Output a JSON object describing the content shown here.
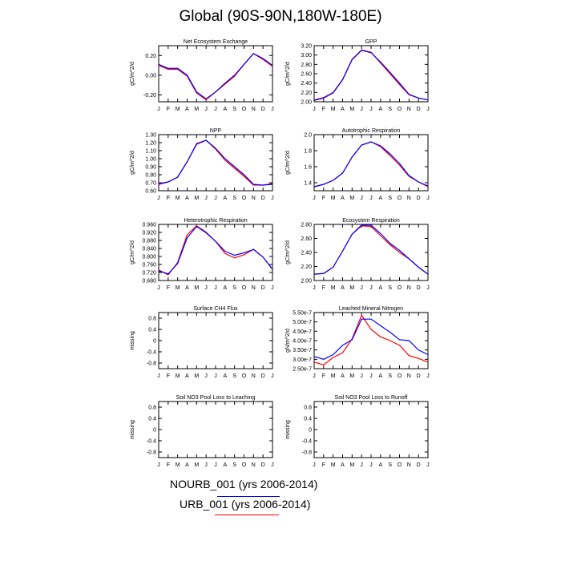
{
  "title": "Global (90S-90N,180W-180E)",
  "colors": {
    "series_1": "#0000ff",
    "series_2": "#ff0000"
  },
  "legend": [
    {
      "label": "NOURB_001 (yrs 2006-2014)",
      "color": "#0000ff"
    },
    {
      "label": "URB_001 (yrs 2006-2014)",
      "color": "#ff0000"
    }
  ],
  "chart_data": [
    {
      "type": "line",
      "title": "Net Ecosystem Exchange",
      "ylabel": "gC/m^2/d",
      "ylim": [
        -0.27,
        0.3
      ],
      "yticks": [
        {
          "v": -0.2,
          "label": "-0.20"
        },
        {
          "v": 0.0,
          "label": "0.00"
        },
        {
          "v": 0.2,
          "label": "0.20"
        }
      ],
      "categories": [
        "J",
        "F",
        "M",
        "A",
        "M",
        "J",
        "J",
        "A",
        "S",
        "O",
        "N",
        "D",
        "J"
      ],
      "series": [
        {
          "color": "#0000ff",
          "values": [
            0.11,
            0.07,
            0.07,
            0.0,
            -0.17,
            -0.24,
            -0.17,
            -0.08,
            0.0,
            0.11,
            0.22,
            0.17,
            0.1
          ]
        },
        {
          "color": "#ff0000",
          "values": [
            0.1,
            0.06,
            0.06,
            -0.01,
            -0.18,
            -0.25,
            -0.17,
            -0.09,
            -0.01,
            0.11,
            0.22,
            0.16,
            0.09
          ]
        }
      ]
    },
    {
      "type": "line",
      "title": "GPP",
      "ylabel": "gC/m^2/d",
      "ylim": [
        2.0,
        3.2
      ],
      "yticks": [
        {
          "v": 2.0,
          "label": "2.00"
        },
        {
          "v": 2.2,
          "label": "2.20"
        },
        {
          "v": 2.4,
          "label": "2.40"
        },
        {
          "v": 2.6,
          "label": "2.60"
        },
        {
          "v": 2.8,
          "label": "2.80"
        },
        {
          "v": 3.0,
          "label": "3.00"
        },
        {
          "v": 3.2,
          "label": "3.20"
        }
      ],
      "categories": [
        "J",
        "F",
        "M",
        "A",
        "M",
        "J",
        "J",
        "A",
        "S",
        "O",
        "N",
        "D",
        "J"
      ],
      "series": [
        {
          "color": "#0000ff",
          "values": [
            2.03,
            2.08,
            2.19,
            2.47,
            2.9,
            3.1,
            3.05,
            2.85,
            2.63,
            2.4,
            2.16,
            2.08,
            2.04
          ]
        },
        {
          "color": "#ff0000",
          "values": [
            2.04,
            2.09,
            2.2,
            2.48,
            2.91,
            3.11,
            3.06,
            2.83,
            2.6,
            2.37,
            2.15,
            2.08,
            2.04
          ]
        }
      ]
    },
    {
      "type": "line",
      "title": "NPP",
      "ylabel": "gC/m^2/d",
      "ylim": [
        0.6,
        1.3
      ],
      "yticks": [
        {
          "v": 0.6,
          "label": "0.60"
        },
        {
          "v": 0.7,
          "label": "0.70"
        },
        {
          "v": 0.8,
          "label": "0.80"
        },
        {
          "v": 0.9,
          "label": "0.90"
        },
        {
          "v": 1.0,
          "label": "1.00"
        },
        {
          "v": 1.1,
          "label": "1.10"
        },
        {
          "v": 1.2,
          "label": "1.20"
        },
        {
          "v": 1.3,
          "label": "1.30"
        }
      ],
      "categories": [
        "J",
        "F",
        "M",
        "A",
        "M",
        "J",
        "J",
        "A",
        "S",
        "O",
        "N",
        "D",
        "J"
      ],
      "series": [
        {
          "color": "#0000ff",
          "values": [
            0.68,
            0.71,
            0.77,
            0.96,
            1.18,
            1.23,
            1.13,
            1.0,
            0.9,
            0.8,
            0.68,
            0.67,
            0.68
          ]
        },
        {
          "color": "#ff0000",
          "values": [
            0.69,
            0.71,
            0.77,
            0.96,
            1.19,
            1.23,
            1.12,
            0.98,
            0.88,
            0.78,
            0.67,
            0.67,
            0.69
          ]
        }
      ]
    },
    {
      "type": "line",
      "title": "Autotrophic Respiration",
      "ylabel": "gC/m^2/d",
      "ylim": [
        1.3,
        2.0
      ],
      "yticks": [
        {
          "v": 1.4,
          "label": "1.4"
        },
        {
          "v": 1.6,
          "label": "1.6"
        },
        {
          "v": 1.8,
          "label": "1.8"
        },
        {
          "v": 2.0,
          "label": "2.0"
        }
      ],
      "categories": [
        "J",
        "F",
        "M",
        "A",
        "M",
        "J",
        "J",
        "A",
        "S",
        "O",
        "N",
        "D",
        "J"
      ],
      "series": [
        {
          "color": "#0000ff",
          "values": [
            1.35,
            1.38,
            1.43,
            1.52,
            1.72,
            1.87,
            1.91,
            1.86,
            1.76,
            1.64,
            1.49,
            1.41,
            1.36
          ]
        },
        {
          "color": "#ff0000",
          "values": [
            1.35,
            1.38,
            1.43,
            1.52,
            1.72,
            1.87,
            1.91,
            1.85,
            1.74,
            1.62,
            1.48,
            1.41,
            1.35
          ]
        }
      ]
    },
    {
      "type": "line",
      "title": "Heterotrophic Respiration",
      "ylabel": "gC/m^2/d",
      "ylim": [
        0.68,
        0.96
      ],
      "yticks": [
        {
          "v": 0.68,
          "label": "0.680"
        },
        {
          "v": 0.72,
          "label": "0.720"
        },
        {
          "v": 0.76,
          "label": "0.760"
        },
        {
          "v": 0.8,
          "label": "0.800"
        },
        {
          "v": 0.84,
          "label": "0.840"
        },
        {
          "v": 0.88,
          "label": "0.880"
        },
        {
          "v": 0.92,
          "label": "0.920"
        },
        {
          "v": 0.96,
          "label": "0.960"
        }
      ],
      "categories": [
        "J",
        "F",
        "M",
        "A",
        "M",
        "J",
        "J",
        "A",
        "S",
        "O",
        "N",
        "D",
        "J"
      ],
      "series": [
        {
          "color": "#0000ff",
          "values": [
            0.728,
            0.713,
            0.765,
            0.893,
            0.95,
            0.918,
            0.876,
            0.826,
            0.806,
            0.818,
            0.835,
            0.797,
            0.736
          ]
        },
        {
          "color": "#ff0000",
          "values": [
            0.733,
            0.708,
            0.77,
            0.908,
            0.953,
            0.921,
            0.875,
            0.815,
            0.793,
            0.808,
            0.836,
            0.797,
            0.736
          ]
        }
      ]
    },
    {
      "type": "line",
      "title": "Ecosystem Respiration",
      "ylabel": "gC/m^2/d",
      "ylim": [
        2.0,
        2.8
      ],
      "yticks": [
        {
          "v": 2.0,
          "label": "2.00"
        },
        {
          "v": 2.2,
          "label": "2.20"
        },
        {
          "v": 2.4,
          "label": "2.40"
        },
        {
          "v": 2.6,
          "label": "2.60"
        },
        {
          "v": 2.8,
          "label": "2.80"
        }
      ],
      "categories": [
        "J",
        "F",
        "M",
        "A",
        "M",
        "J",
        "J",
        "A",
        "S",
        "O",
        "N",
        "D",
        "J"
      ],
      "series": [
        {
          "color": "#0000ff",
          "values": [
            2.09,
            2.1,
            2.19,
            2.42,
            2.66,
            2.79,
            2.79,
            2.67,
            2.53,
            2.43,
            2.31,
            2.19,
            2.09
          ]
        },
        {
          "color": "#ff0000",
          "values": [
            2.09,
            2.1,
            2.19,
            2.42,
            2.66,
            2.78,
            2.77,
            2.64,
            2.51,
            2.4,
            2.31,
            2.19,
            2.09
          ]
        }
      ]
    },
    {
      "type": "line",
      "title": "Surface CH4 Flux",
      "ylabel": "missing",
      "ylim": [
        -1.0,
        1.0
      ],
      "yticks": [
        {
          "v": -0.8,
          "label": "-0.8"
        },
        {
          "v": -0.4,
          "label": "-0.4"
        },
        {
          "v": 0.0,
          "label": "0"
        },
        {
          "v": 0.4,
          "label": "0.4"
        },
        {
          "v": 0.8,
          "label": "0.8"
        }
      ],
      "categories": [
        "J",
        "F",
        "M",
        "A",
        "M",
        "J",
        "J",
        "A",
        "S",
        "O",
        "N",
        "D",
        "J"
      ],
      "series": []
    },
    {
      "type": "line",
      "title": "Leached Mineral Nitrogen",
      "ylabel": "gN/m^2/d",
      "ylim": [
        2.5e-07,
        5.5e-07
      ],
      "yticks": [
        {
          "v": 2.5e-07,
          "label": "2.50e-7"
        },
        {
          "v": 3e-07,
          "label": "3.00e-7"
        },
        {
          "v": 3.5e-07,
          "label": "3.50e-7"
        },
        {
          "v": 4e-07,
          "label": "4.00e-7"
        },
        {
          "v": 4.5e-07,
          "label": "4.50e-7"
        },
        {
          "v": 5e-07,
          "label": "5.00e-7"
        },
        {
          "v": 5.5e-07,
          "label": "5.50e-7"
        }
      ],
      "categories": [
        "J",
        "F",
        "M",
        "A",
        "M",
        "J",
        "J",
        "A",
        "S",
        "O",
        "N",
        "D",
        "J"
      ],
      "series": [
        {
          "color": "#0000ff",
          "values": [
            3.15e-07,
            3e-07,
            3.25e-07,
            3.75e-07,
            4.05e-07,
            5.15e-07,
            5.15e-07,
            4.8e-07,
            4.45e-07,
            4.05e-07,
            4e-07,
            3.5e-07,
            3.25e-07
          ]
        },
        {
          "color": "#ff0000",
          "values": [
            2.85e-07,
            2.7e-07,
            3.1e-07,
            3.35e-07,
            4.1e-07,
            5.35e-07,
            4.6e-07,
            4.2e-07,
            4e-07,
            3.75e-07,
            3.2e-07,
            3.05e-07,
            2.85e-07
          ]
        }
      ]
    },
    {
      "type": "line",
      "title": "Soil NO3 Pool Loss to Leaching",
      "ylabel": "missing",
      "ylim": [
        -1.0,
        1.0
      ],
      "yticks": [
        {
          "v": -0.8,
          "label": "-0.8"
        },
        {
          "v": -0.4,
          "label": "-0.4"
        },
        {
          "v": 0.0,
          "label": "0"
        },
        {
          "v": 0.4,
          "label": "0.4"
        },
        {
          "v": 0.8,
          "label": "0.8"
        }
      ],
      "categories": [
        "J",
        "F",
        "M",
        "A",
        "M",
        "J",
        "J",
        "A",
        "S",
        "O",
        "N",
        "D",
        "J"
      ],
      "series": []
    },
    {
      "type": "line",
      "title": "Soil NO3 Pool Loss to Runoff",
      "ylabel": "missing",
      "ylim": [
        -1.0,
        1.0
      ],
      "yticks": [
        {
          "v": -0.8,
          "label": "-0.8"
        },
        {
          "v": -0.4,
          "label": "-0.4"
        },
        {
          "v": 0.0,
          "label": "0"
        },
        {
          "v": 0.4,
          "label": "0.4"
        },
        {
          "v": 0.8,
          "label": "0.8"
        }
      ],
      "categories": [
        "J",
        "F",
        "M",
        "A",
        "M",
        "J",
        "J",
        "A",
        "S",
        "O",
        "N",
        "D",
        "J"
      ],
      "series": []
    }
  ]
}
